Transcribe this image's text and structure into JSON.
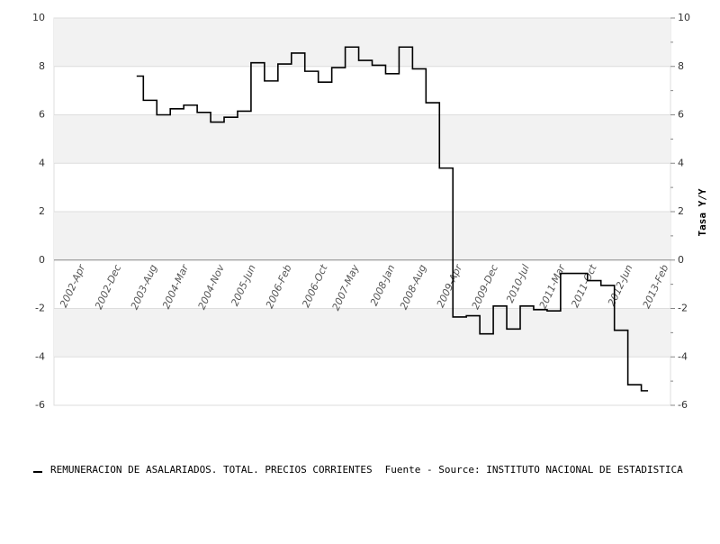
{
  "chart_data": {
    "type": "line",
    "step": true,
    "x": [
      "2003-Apr",
      "2003-Jul",
      "2003-Oct",
      "2004-Jan",
      "2004-Apr",
      "2004-Jul",
      "2004-Oct",
      "2005-Jan",
      "2005-Apr",
      "2005-Jul",
      "2005-Oct",
      "2006-Jan",
      "2006-Apr",
      "2006-Jul",
      "2006-Oct",
      "2007-Jan",
      "2007-Apr",
      "2007-Jul",
      "2007-Oct",
      "2008-Jan",
      "2008-Apr",
      "2008-Jul",
      "2008-Oct",
      "2009-Jan",
      "2009-Apr",
      "2009-Jul",
      "2009-Oct",
      "2010-Jan",
      "2010-Apr",
      "2010-Jul",
      "2010-Oct",
      "2011-Jan",
      "2011-Apr",
      "2011-Jul",
      "2011-Oct",
      "2012-Jan",
      "2012-Apr",
      "2012-Jul",
      "2012-Oct"
    ],
    "series": [
      {
        "name": "REMUNERACION DE ASALARIADOS. TOTAL. PRECIOS CORRIENTES",
        "color": "#000000",
        "values": [
          7.6,
          6.6,
          6.0,
          6.25,
          6.4,
          6.1,
          5.7,
          5.9,
          6.15,
          8.15,
          7.4,
          8.1,
          8.55,
          7.8,
          7.35,
          7.95,
          8.8,
          8.25,
          8.05,
          7.7,
          8.8,
          7.9,
          6.5,
          3.8,
          -2.35,
          -2.3,
          -3.05,
          -1.9,
          -2.85,
          -1.9,
          -2.05,
          -2.1,
          -0.55,
          -0.55,
          -0.85,
          -1.05,
          -2.9,
          -5.15,
          -5.4
        ]
      }
    ],
    "source": "Fuente - Source: INSTITUTO NACIONAL DE ESTADISTICA",
    "xticks": [
      "2002-Apr",
      "2002-Dec",
      "2003-Aug",
      "2004-Mar",
      "2004-Nov",
      "2005-Jun",
      "2006-Feb",
      "2006-Oct",
      "2007-May",
      "2008-Jan",
      "2008-Aug",
      "2009-Apr",
      "2009-Dec",
      "2010-Jul",
      "2011-Mar",
      "2011-Oct",
      "2012-Jun",
      "2013-Feb"
    ],
    "ylim": [
      -6,
      10
    ],
    "yticks": [
      -6,
      -4,
      -2,
      0,
      2,
      4,
      6,
      8,
      10
    ],
    "y2lim": [
      -6,
      10
    ],
    "y2ticks": [
      -6,
      -4,
      -2,
      0,
      2,
      4,
      6,
      8,
      10
    ],
    "y2label": "Tasa Y/Y",
    "grid": true,
    "bands": true
  }
}
